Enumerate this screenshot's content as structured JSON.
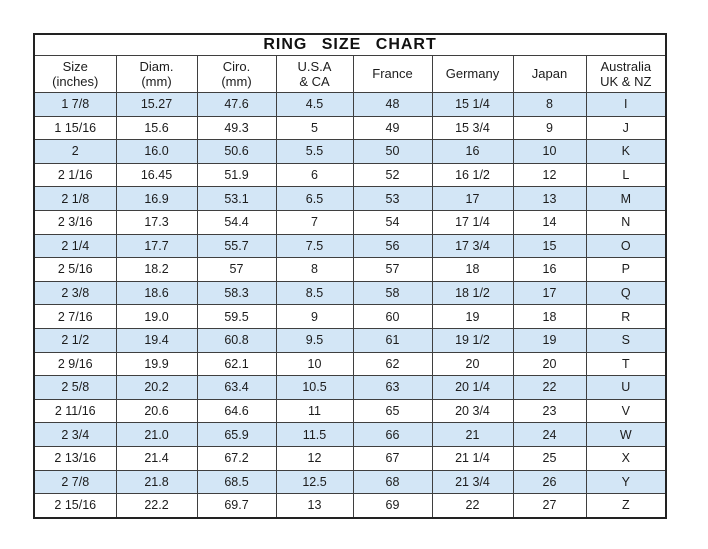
{
  "title": "RING  SIZE  CHART",
  "colors": {
    "row_alt_blue": "#d3e6f6",
    "row_white": "#ffffff",
    "inner_border": "#3f3f3f",
    "outer_border": "#222222",
    "text": "#1c1c1c"
  },
  "chart_data": {
    "type": "table",
    "title": "RING SIZE CHART",
    "columns": [
      {
        "l1": "Size",
        "l2": "(inches)"
      },
      {
        "l1": "Diam.",
        "l2": "(mm)"
      },
      {
        "l1": "Ciro.",
        "l2": "(mm)"
      },
      {
        "l1": "U.S.A",
        "l2": "& CA"
      },
      {
        "l1": "France",
        "l2": ""
      },
      {
        "l1": "Germany",
        "l2": ""
      },
      {
        "l1": "Japan",
        "l2": ""
      },
      {
        "l1": "Australia",
        "l2": "UK & NZ"
      }
    ],
    "rows": [
      [
        "1 7/8",
        "15.27",
        "47.6",
        "4.5",
        "48",
        "15 1/4",
        "8",
        "I"
      ],
      [
        "1 15/16",
        "15.6",
        "49.3",
        "5",
        "49",
        "15 3/4",
        "9",
        "J"
      ],
      [
        "2",
        "16.0",
        "50.6",
        "5.5",
        "50",
        "16",
        "10",
        "K"
      ],
      [
        "2 1/16",
        "16.45",
        "51.9",
        "6",
        "52",
        "16 1/2",
        "12",
        "L"
      ],
      [
        "2 1/8",
        "16.9",
        "53.1",
        "6.5",
        "53",
        "17",
        "13",
        "M"
      ],
      [
        "2 3/16",
        "17.3",
        "54.4",
        "7",
        "54",
        "17 1/4",
        "14",
        "N"
      ],
      [
        "2 1/4",
        "17.7",
        "55.7",
        "7.5",
        "56",
        "17 3/4",
        "15",
        "O"
      ],
      [
        "2 5/16",
        "18.2",
        "57",
        "8",
        "57",
        "18",
        "16",
        "P"
      ],
      [
        "2 3/8",
        "18.6",
        "58.3",
        "8.5",
        "58",
        "18 1/2",
        "17",
        "Q"
      ],
      [
        "2 7/16",
        "19.0",
        "59.5",
        "9",
        "60",
        "19",
        "18",
        "R"
      ],
      [
        "2 1/2",
        "19.4",
        "60.8",
        "9.5",
        "61",
        "19 1/2",
        "19",
        "S"
      ],
      [
        "2 9/16",
        "19.9",
        "62.1",
        "10",
        "62",
        "20",
        "20",
        "T"
      ],
      [
        "2 5/8",
        "20.2",
        "63.4",
        "10.5",
        "63",
        "20 1/4",
        "22",
        "U"
      ],
      [
        "2 11/16",
        "20.6",
        "64.6",
        "11",
        "65",
        "20 3/4",
        "23",
        "V"
      ],
      [
        "2 3/4",
        "21.0",
        "65.9",
        "11.5",
        "66",
        "21",
        "24",
        "W"
      ],
      [
        "2 13/16",
        "21.4",
        "67.2",
        "12",
        "67",
        "21 1/4",
        "25",
        "X"
      ],
      [
        "2 7/8",
        "21.8",
        "68.5",
        "12.5",
        "68",
        "21 3/4",
        "26",
        "Y"
      ],
      [
        "2 15/16",
        "22.2",
        "69.7",
        "13",
        "69",
        "22",
        "27",
        "Z"
      ]
    ]
  }
}
